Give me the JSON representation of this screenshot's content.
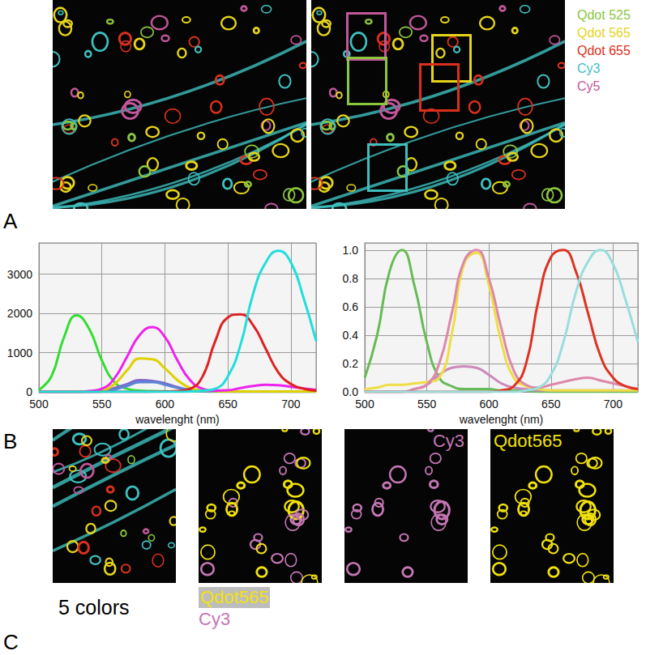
{
  "panels": {
    "A": {
      "letter": "A",
      "legend": [
        {
          "label": "Qdot 525",
          "color": "#8cc63f"
        },
        {
          "label": "Qdot 565",
          "color": "#e6d41a"
        },
        {
          "label": "Qdot 655",
          "color": "#d9301c"
        },
        {
          "label": "Cy3",
          "color": "#3fbfbf"
        },
        {
          "label": "Cy5",
          "color": "#c2579b"
        }
      ]
    },
    "B": {
      "letter": "B"
    },
    "C": {
      "letter": "C",
      "caption": "5 colors",
      "caption_labels": [
        {
          "label": "Qdot565",
          "color": "#f2e20c",
          "background": "#bdbdbd"
        },
        {
          "label": "Cy3",
          "color": "#c576b4"
        }
      ],
      "image_labels": [
        {
          "label": "Cy3",
          "color": "#c576b4"
        },
        {
          "label": "Qdot565",
          "color": "#f2e20c"
        }
      ]
    }
  },
  "chart_data": [
    {
      "type": "line",
      "x_label": "wavelenght (nm)",
      "x": [
        500,
        510,
        520,
        530,
        540,
        550,
        560,
        570,
        580,
        590,
        600,
        610,
        620,
        630,
        640,
        650,
        660,
        670,
        680,
        690,
        700,
        710,
        720
      ],
      "xlim": [
        500,
        720
      ],
      "xticks": [
        500,
        550,
        600,
        650,
        700
      ],
      "ylim": [
        0,
        3800
      ],
      "yticks": [
        0,
        1000,
        2000,
        3000
      ],
      "grid": true,
      "series": [
        {
          "color": "#33dd33",
          "values": [
            50,
            400,
            1400,
            1950,
            1600,
            800,
            250,
            80,
            30,
            20,
            15,
            10,
            10,
            10,
            5,
            5,
            5,
            5,
            5,
            5,
            5,
            5,
            5
          ]
        },
        {
          "color": "#7f66cc",
          "values": [
            0,
            0,
            0,
            0,
            0,
            10,
            100,
            200,
            300,
            280,
            220,
            120,
            50,
            20,
            10,
            5,
            5,
            5,
            5,
            5,
            5,
            5,
            5
          ]
        },
        {
          "color": "#5b86d6",
          "values": [
            0,
            0,
            0,
            0,
            0,
            5,
            60,
            150,
            250,
            250,
            180,
            100,
            40,
            15,
            5,
            5,
            5,
            5,
            5,
            5,
            5,
            5,
            5
          ]
        },
        {
          "color": "#e0d000",
          "values": [
            0,
            0,
            0,
            0,
            10,
            40,
            200,
            550,
            850,
            830,
            600,
            300,
            100,
            40,
            20,
            10,
            10,
            10,
            10,
            10,
            10,
            10,
            10
          ]
        },
        {
          "color": "#ee22ee",
          "values": [
            0,
            0,
            0,
            0,
            20,
            80,
            350,
            900,
            1450,
            1650,
            1400,
            800,
            300,
            80,
            30,
            40,
            100,
            150,
            180,
            170,
            130,
            90,
            50
          ]
        },
        {
          "color": "#dd2222",
          "values": [
            0,
            0,
            0,
            0,
            0,
            0,
            0,
            0,
            0,
            5,
            10,
            20,
            80,
            400,
            1300,
            1900,
            1980,
            1700,
            1100,
            500,
            200,
            80,
            30
          ]
        },
        {
          "color": "#22dddd",
          "values": [
            0,
            0,
            0,
            0,
            0,
            0,
            0,
            0,
            0,
            0,
            0,
            0,
            10,
            30,
            80,
            400,
            1200,
            2500,
            3300,
            3600,
            3300,
            2400,
            1300
          ]
        }
      ]
    },
    {
      "type": "line",
      "x_label": "wavelenght (nm)",
      "x": [
        500,
        510,
        520,
        530,
        540,
        550,
        560,
        570,
        580,
        590,
        600,
        610,
        620,
        630,
        640,
        650,
        660,
        670,
        680,
        690,
        700,
        710,
        720
      ],
      "xlim": [
        500,
        720
      ],
      "xticks": [
        500,
        550,
        600,
        650,
        700
      ],
      "ylim": [
        0,
        1.05
      ],
      "yticks": [
        {
          "value": 0,
          "label": "0.0"
        },
        0.2,
        0.4,
        0.6,
        0.8,
        {
          "value": 1,
          "label": "1.0"
        }
      ],
      "grid": true,
      "series": [
        {
          "color": "#66bb55",
          "values": [
            0.1,
            0.4,
            0.85,
            1.0,
            0.75,
            0.35,
            0.1,
            0.04,
            0.02,
            0.02,
            0.02,
            0.01,
            0.01,
            0.01,
            0,
            0,
            0,
            0,
            0,
            0,
            0,
            0,
            0
          ]
        },
        {
          "color": "#cc88bb",
          "values": [
            0,
            0,
            0,
            0,
            0.02,
            0.05,
            0.12,
            0.17,
            0.18,
            0.17,
            0.12,
            0.06,
            0.03,
            0.02,
            0.01,
            0.01,
            0.01,
            0.01,
            0.01,
            0.01,
            0.01,
            0.01,
            0.01
          ]
        },
        {
          "color": "#eedd44",
          "values": [
            0.02,
            0.03,
            0.05,
            0.05,
            0.06,
            0.07,
            0.1,
            0.4,
            0.9,
            0.98,
            0.75,
            0.35,
            0.1,
            0.04,
            0.02,
            0.01,
            0.01,
            0.01,
            0.01,
            0.01,
            0.01,
            0.01,
            0.01
          ]
        },
        {
          "color": "#dd88aa",
          "values": [
            0,
            0,
            0,
            0,
            0.02,
            0.05,
            0.2,
            0.55,
            0.92,
            1.0,
            0.8,
            0.45,
            0.15,
            0.05,
            0.03,
            0.05,
            0.07,
            0.09,
            0.1,
            0.08,
            0.06,
            0.04,
            0.02
          ]
        },
        {
          "color": "#dd3322",
          "values": [
            0,
            0,
            0,
            0,
            0,
            0,
            0,
            0,
            0,
            0,
            0,
            0.01,
            0.04,
            0.2,
            0.65,
            0.95,
            1.0,
            0.85,
            0.55,
            0.25,
            0.1,
            0.04,
            0.02
          ]
        },
        {
          "color": "#99dddd",
          "values": [
            0,
            0,
            0,
            0,
            0,
            0,
            0,
            0,
            0,
            0,
            0,
            0,
            0,
            0.01,
            0.03,
            0.12,
            0.35,
            0.7,
            0.92,
            1.0,
            0.9,
            0.65,
            0.35
          ]
        }
      ]
    }
  ]
}
